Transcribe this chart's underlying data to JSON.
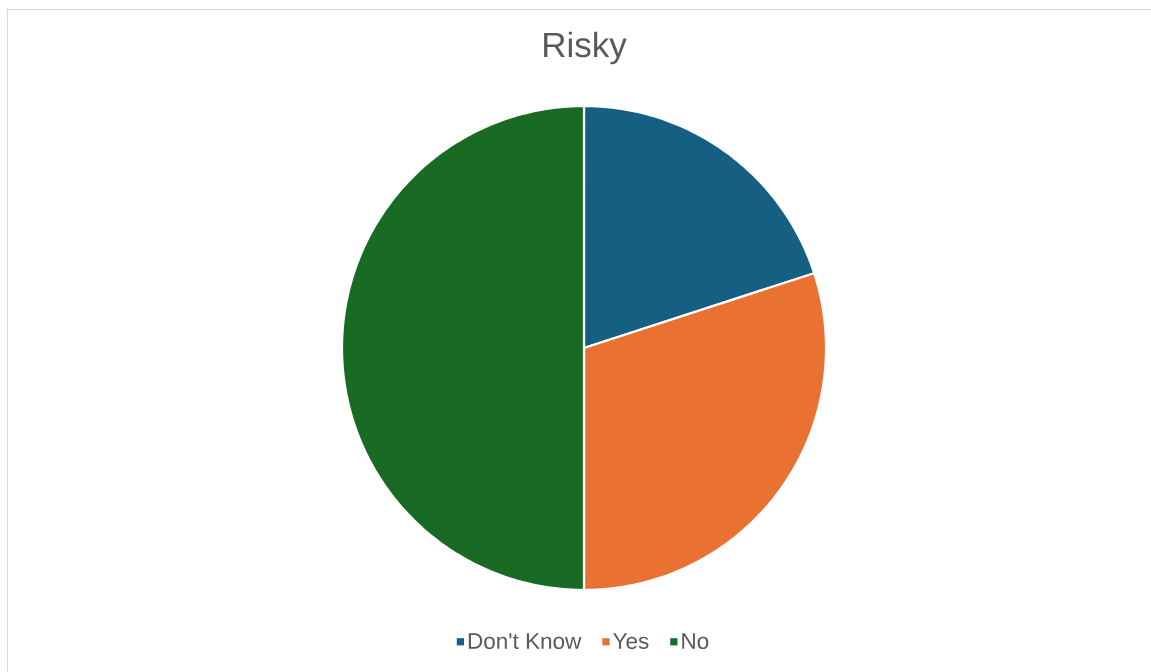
{
  "chart_data": {
    "type": "pie",
    "title": "Risky",
    "categories": [
      "Don't Know",
      "Yes",
      "No"
    ],
    "values": [
      20,
      30,
      50
    ],
    "colors": [
      "#156082",
      "#e97132",
      "#196b24"
    ],
    "legend": "bottom"
  }
}
